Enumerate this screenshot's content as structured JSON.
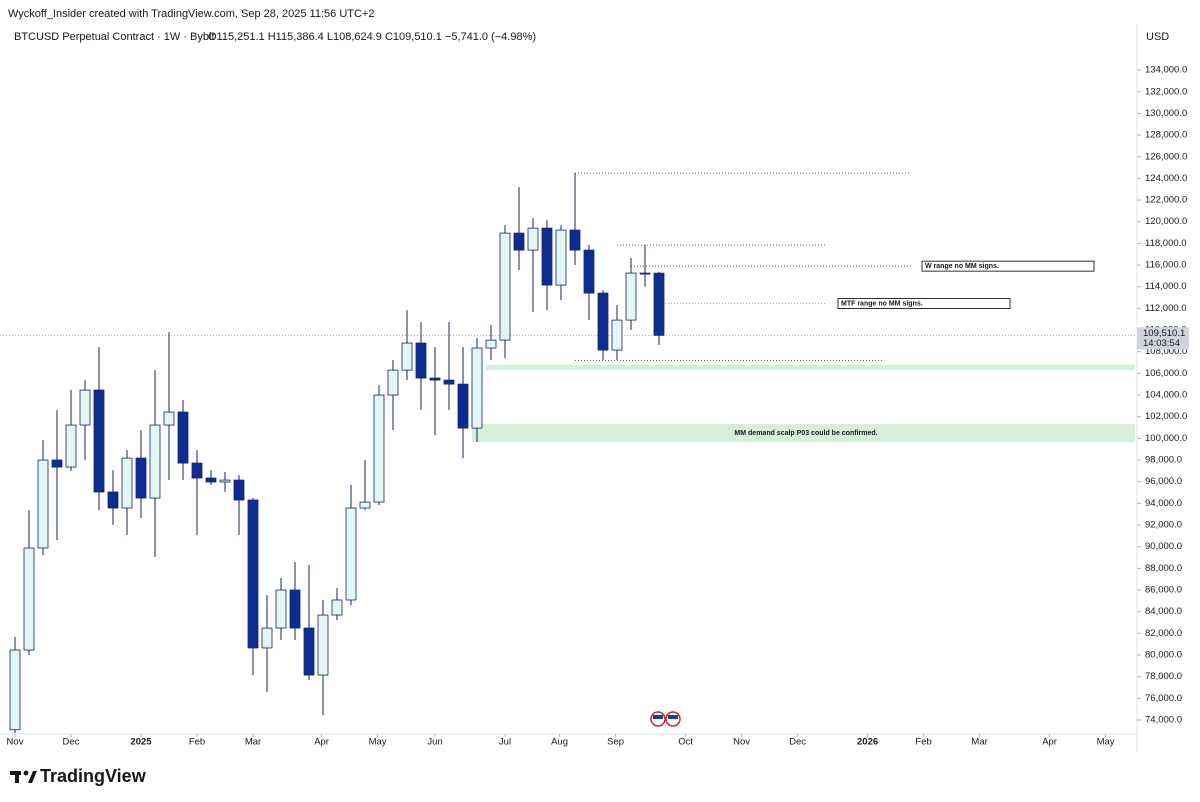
{
  "chart_data": {
    "type": "candlestick",
    "header": "Wyckoff_Insider created with TradingView.com, Sep 28, 2025 11:56 UTC+2",
    "symbol": "BTCUSD Perpetual Contract · 1W · Bybit",
    "ohlc_legend": "O115,251.1 H115,386.4 L108,624.9 C109,510.1 −5,741.0 (−4.98%)",
    "currency": "USD",
    "brand": "TradingView",
    "up_color": "#e3f6f6",
    "down_color": "#0e2d92",
    "outline_color": "#1a2366",
    "open": [
      73100,
      80460,
      89880,
      98000,
      97350,
      101230,
      104460,
      95050,
      93570,
      98180,
      94490,
      101230,
      102430,
      97720,
      96340,
      95970,
      96150,
      94310,
      80650,
      82490,
      86000,
      82490,
      78150,
      83690,
      85080,
      93570,
      94120,
      104000,
      106300,
      108800,
      105570,
      105380,
      105010,
      100950,
      108340,
      109070,
      118950,
      117380,
      119410,
      114150,
      119230,
      117380,
      113410,
      108150,
      110920,
      115260,
      115251.1
    ],
    "high": [
      81660,
      93380,
      99840,
      102600,
      104460,
      105380,
      108430,
      97070,
      98920,
      100770,
      106300,
      109810,
      103540,
      98920,
      97070,
      96900,
      96610,
      94490,
      85540,
      87110,
      88580,
      88300,
      85080,
      86180,
      95690,
      98000,
      104920,
      107230,
      111840,
      110730,
      108430,
      110730,
      108430,
      109260,
      110460,
      119690,
      123200,
      120330,
      120150,
      119690,
      124490,
      117850,
      113690,
      112310,
      116650,
      117850,
      115386.4
    ],
    "low": [
      72000,
      80000,
      89230,
      90600,
      97000,
      98000,
      93380,
      92000,
      91080,
      92650,
      89050,
      96150,
      96150,
      91080,
      95690,
      95060,
      91080,
      78150,
      76580,
      81380,
      81380,
      77690,
      74460,
      83230,
      84610,
      93380,
      93840,
      100770,
      105380,
      102620,
      100310,
      102620,
      98180,
      99660,
      107230,
      107410,
      115540,
      111660,
      111840,
      112770,
      116000,
      110920,
      107230,
      107230,
      110000,
      114000,
      108624.9
    ],
    "close": [
      80460,
      89880,
      98000,
      97350,
      101230,
      104460,
      95050,
      93570,
      98180,
      94490,
      101230,
      102430,
      97720,
      96340,
      95970,
      96150,
      94310,
      80650,
      82490,
      86000,
      82490,
      78150,
      83690,
      85080,
      93570,
      94120,
      104000,
      106300,
      108800,
      105570,
      105380,
      105010,
      100950,
      108340,
      109070,
      118950,
      117380,
      119410,
      114150,
      119230,
      117380,
      113410,
      108150,
      110920,
      115260,
      115251.1,
      109510.1
    ],
    "xlim": [
      -0.5,
      80
    ],
    "xticks": [
      {
        "value": 0,
        "label": "Nov"
      },
      {
        "value": 4,
        "label": "Dec"
      },
      {
        "value": 9,
        "label": "2025"
      },
      {
        "value": 13,
        "label": "Feb"
      },
      {
        "value": 17,
        "label": "Mar"
      },
      {
        "value": 21.9,
        "label": "Apr"
      },
      {
        "value": 25.9,
        "label": "May"
      },
      {
        "value": 30,
        "label": "Jun"
      },
      {
        "value": 35,
        "label": "Jul"
      },
      {
        "value": 38.9,
        "label": "Aug"
      },
      {
        "value": 42.9,
        "label": "Sep"
      },
      {
        "value": 47.9,
        "label": "Oct"
      },
      {
        "value": 51.9,
        "label": "Nov"
      },
      {
        "value": 55.9,
        "label": "Dec"
      },
      {
        "value": 60.9,
        "label": "2026"
      },
      {
        "value": 64.9,
        "label": "Feb"
      },
      {
        "value": 68.9,
        "label": "Mar"
      },
      {
        "value": 73.9,
        "label": "Apr"
      },
      {
        "value": 77.9,
        "label": "May"
      }
    ],
    "ylim": [
      72800,
      137700
    ],
    "yticks": [
      {
        "value": 74000,
        "label": "74,000.0"
      },
      {
        "value": 76000,
        "label": "76,000.0"
      },
      {
        "value": 78000,
        "label": "78,000.0"
      },
      {
        "value": 80000,
        "label": "80,000.0"
      },
      {
        "value": 82000,
        "label": "82,000.0"
      },
      {
        "value": 84000,
        "label": "84,000.0"
      },
      {
        "value": 86000,
        "label": "86,000.0"
      },
      {
        "value": 88000,
        "label": "88,000.0"
      },
      {
        "value": 90000,
        "label": "90,000.0"
      },
      {
        "value": 92000,
        "label": "92,000.0"
      },
      {
        "value": 94000,
        "label": "94,000.0"
      },
      {
        "value": 96000,
        "label": "96,000.0"
      },
      {
        "value": 98000,
        "label": "98,000.0"
      },
      {
        "value": 100000,
        "label": "100,000.0"
      },
      {
        "value": 102000,
        "label": "102,000.0"
      },
      {
        "value": 104000,
        "label": "104,000.0"
      },
      {
        "value": 106000,
        "label": "106,000.0"
      },
      {
        "value": 108000,
        "label": "108,000.0"
      },
      {
        "value": 110000,
        "label": "110,000.0"
      },
      {
        "value": 112000,
        "label": "112,000.0"
      },
      {
        "value": 114000,
        "label": "114,000.0"
      },
      {
        "value": 116000,
        "label": "116,000.0"
      },
      {
        "value": 118000,
        "label": "118,000.0"
      },
      {
        "value": 120000,
        "label": "120,000.0"
      },
      {
        "value": 122000,
        "label": "122,000.0"
      },
      {
        "value": 124000,
        "label": "124,000.0"
      },
      {
        "value": 126000,
        "label": "126,000.0"
      },
      {
        "value": 128000,
        "label": "128,000.0"
      },
      {
        "value": 130000,
        "label": "130,000.0"
      },
      {
        "value": 132000,
        "label": "132,000.0"
      },
      {
        "value": 134000,
        "label": "134,000.0"
      }
    ],
    "last_price": {
      "value": 109510.1,
      "label": "109,510.1"
    },
    "countdown": "14:03:54",
    "levels": [
      124490,
      117850,
      115900,
      107200
    ],
    "red_level": 112450,
    "zones": [
      [
        106300,
        106800
      ],
      [
        99660,
        101330
      ]
    ],
    "zone_color": "#d6efd8",
    "zone_label": "MM demand scalp P03 could be confirmed.",
    "notes": [
      "W range no MM  signs.",
      "MTF range no MM  signs."
    ]
  }
}
